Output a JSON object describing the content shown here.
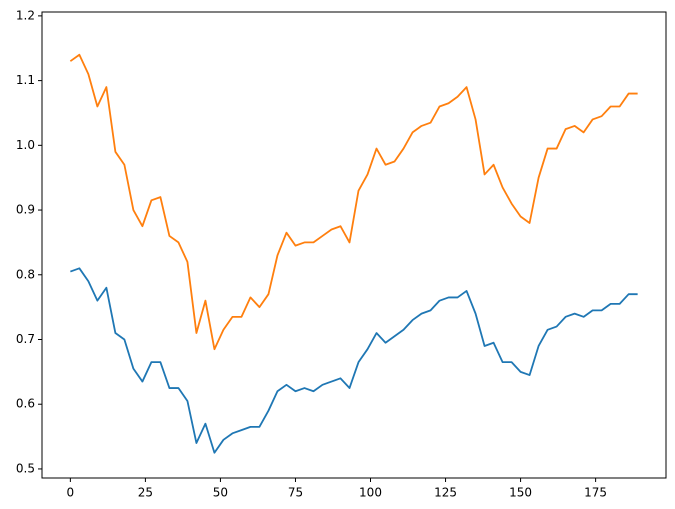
{
  "chart_data": {
    "type": "line",
    "x": [
      0,
      3,
      6,
      9,
      12,
      15,
      18,
      21,
      24,
      27,
      30,
      33,
      36,
      39,
      42,
      45,
      48,
      51,
      54,
      57,
      60,
      63,
      66,
      69,
      72,
      75,
      78,
      81,
      84,
      87,
      90,
      93,
      96,
      99,
      102,
      105,
      108,
      111,
      114,
      117,
      120,
      123,
      126,
      129,
      132,
      135,
      138,
      141,
      144,
      147,
      150,
      153,
      156,
      159,
      162,
      165,
      168,
      171,
      174,
      177,
      180,
      183,
      186,
      189
    ],
    "series": [
      {
        "color": "#1f77b4",
        "values": [
          0.805,
          0.81,
          0.79,
          0.76,
          0.78,
          0.71,
          0.7,
          0.655,
          0.635,
          0.665,
          0.665,
          0.625,
          0.625,
          0.605,
          0.54,
          0.57,
          0.525,
          0.545,
          0.555,
          0.56,
          0.565,
          0.565,
          0.59,
          0.62,
          0.63,
          0.62,
          0.625,
          0.62,
          0.63,
          0.635,
          0.64,
          0.625,
          0.665,
          0.685,
          0.71,
          0.695,
          0.705,
          0.715,
          0.73,
          0.74,
          0.745,
          0.76,
          0.765,
          0.765,
          0.775,
          0.74,
          0.69,
          0.695,
          0.665,
          0.665,
          0.65,
          0.645,
          0.69,
          0.715,
          0.72,
          0.735,
          0.74,
          0.735,
          0.745,
          0.745,
          0.755,
          0.755,
          0.77,
          0.77
        ]
      },
      {
        "color": "#ff7f0e",
        "values": [
          1.13,
          1.14,
          1.11,
          1.06,
          1.09,
          0.99,
          0.97,
          0.9,
          0.875,
          0.915,
          0.92,
          0.86,
          0.85,
          0.82,
          0.71,
          0.76,
          0.685,
          0.715,
          0.735,
          0.735,
          0.765,
          0.75,
          0.77,
          0.83,
          0.865,
          0.845,
          0.85,
          0.85,
          0.86,
          0.87,
          0.875,
          0.85,
          0.93,
          0.955,
          0.995,
          0.97,
          0.975,
          0.995,
          1.02,
          1.03,
          1.035,
          1.06,
          1.065,
          1.075,
          1.09,
          1.04,
          0.955,
          0.97,
          0.935,
          0.91,
          0.89,
          0.88,
          0.95,
          0.995,
          0.995,
          1.025,
          1.03,
          1.02,
          1.04,
          1.045,
          1.06,
          1.06,
          1.08,
          1.08
        ]
      }
    ],
    "xlim": [
      -9.45,
      198.45
    ],
    "xticks": [
      0,
      25,
      50,
      75,
      100,
      125,
      150,
      175
    ],
    "ylim": [
      0.486,
      1.206
    ],
    "yticks": [
      0.5,
      0.6,
      0.7,
      0.8,
      0.9,
      {
        "value": 1.0,
        "label": "1.0"
      },
      1.1,
      1.2
    ]
  }
}
